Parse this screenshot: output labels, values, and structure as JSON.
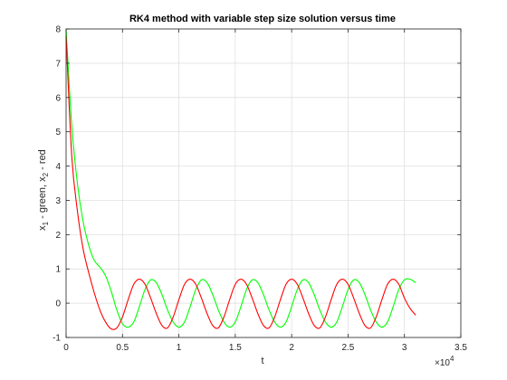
{
  "chart_data": {
    "type": "line",
    "title": "RK4 method with variable step size solution versus time",
    "xlabel": "t",
    "ylabel": {
      "part1": "x",
      "sub1": "1",
      "part2": " - green, x",
      "sub2": "2",
      "part3": " - red"
    },
    "x_exponent": {
      "base": "×10",
      "power": "4"
    },
    "xlim": [
      0,
      3.5
    ],
    "ylim": [
      -1,
      8
    ],
    "x_ticks": [
      0,
      0.5,
      1,
      1.5,
      2,
      2.5,
      3,
      3.5
    ],
    "x_tick_labels": [
      "0",
      "0.5",
      "1",
      "1.5",
      "2",
      "2.5",
      "3",
      "3.5"
    ],
    "y_ticks": [
      -1,
      0,
      1,
      2,
      3,
      4,
      5,
      6,
      7,
      8
    ],
    "y_tick_labels": [
      "-1",
      "0",
      "1",
      "2",
      "3",
      "4",
      "5",
      "6",
      "7",
      "8"
    ],
    "grid": true,
    "x_units_note": "x values in units of 1e4",
    "series": [
      {
        "name": "x1",
        "color": "#00ff00",
        "points": [
          [
            0,
            8
          ],
          [
            0.05,
            5.2
          ],
          [
            0.1,
            3.5
          ],
          [
            0.15,
            2.4
          ],
          [
            0.2,
            1.7
          ],
          [
            0.25,
            1.25
          ],
          [
            0.3,
            1.05
          ],
          [
            0.35,
            0.8
          ],
          [
            0.4,
            0.35
          ],
          [
            0.45,
            -0.2
          ],
          [
            0.5,
            -0.6
          ],
          [
            0.55,
            -0.7
          ],
          [
            0.6,
            -0.55
          ],
          [
            0.65,
            -0.1
          ],
          [
            0.7,
            0.4
          ],
          [
            0.75,
            0.68
          ],
          [
            0.8,
            0.6
          ],
          [
            0.85,
            0.25
          ],
          [
            0.9,
            -0.2
          ],
          [
            0.95,
            -0.55
          ],
          [
            1.0,
            -0.7
          ],
          [
            1.05,
            -0.55
          ],
          [
            1.1,
            -0.1
          ],
          [
            1.15,
            0.4
          ],
          [
            1.2,
            0.68
          ],
          [
            1.25,
            0.6
          ],
          [
            1.3,
            0.25
          ],
          [
            1.35,
            -0.2
          ],
          [
            1.4,
            -0.55
          ],
          [
            1.45,
            -0.7
          ],
          [
            1.5,
            -0.55
          ],
          [
            1.55,
            -0.1
          ],
          [
            1.6,
            0.4
          ],
          [
            1.65,
            0.68
          ],
          [
            1.7,
            0.6
          ],
          [
            1.75,
            0.25
          ],
          [
            1.8,
            -0.2
          ],
          [
            1.85,
            -0.55
          ],
          [
            1.9,
            -0.7
          ],
          [
            1.95,
            -0.55
          ],
          [
            2.0,
            -0.1
          ],
          [
            2.05,
            0.4
          ],
          [
            2.1,
            0.68
          ],
          [
            2.15,
            0.6
          ],
          [
            2.2,
            0.25
          ],
          [
            2.25,
            -0.2
          ],
          [
            2.3,
            -0.55
          ],
          [
            2.35,
            -0.7
          ],
          [
            2.4,
            -0.55
          ],
          [
            2.45,
            -0.1
          ],
          [
            2.5,
            0.4
          ],
          [
            2.55,
            0.68
          ],
          [
            2.6,
            0.6
          ],
          [
            2.65,
            0.25
          ],
          [
            2.7,
            -0.2
          ],
          [
            2.75,
            -0.55
          ],
          [
            2.8,
            -0.7
          ],
          [
            2.85,
            -0.55
          ],
          [
            2.9,
            -0.1
          ],
          [
            2.95,
            0.4
          ],
          [
            3.0,
            0.68
          ],
          [
            3.05,
            0.7
          ],
          [
            3.1,
            0.6
          ]
        ]
      },
      {
        "name": "x2",
        "color": "#ff0000",
        "points": [
          [
            0,
            7.8
          ],
          [
            0.05,
            4.3
          ],
          [
            0.1,
            2.7
          ],
          [
            0.15,
            1.6
          ],
          [
            0.2,
            0.9
          ],
          [
            0.25,
            0.3
          ],
          [
            0.3,
            -0.2
          ],
          [
            0.35,
            -0.55
          ],
          [
            0.4,
            -0.75
          ],
          [
            0.45,
            -0.72
          ],
          [
            0.5,
            -0.4
          ],
          [
            0.55,
            0.1
          ],
          [
            0.6,
            0.55
          ],
          [
            0.65,
            0.7
          ],
          [
            0.7,
            0.55
          ],
          [
            0.75,
            0.15
          ],
          [
            0.8,
            -0.3
          ],
          [
            0.85,
            -0.65
          ],
          [
            0.9,
            -0.72
          ],
          [
            0.95,
            -0.4
          ],
          [
            1.0,
            0.1
          ],
          [
            1.05,
            0.55
          ],
          [
            1.1,
            0.7
          ],
          [
            1.15,
            0.55
          ],
          [
            1.2,
            0.15
          ],
          [
            1.25,
            -0.3
          ],
          [
            1.3,
            -0.65
          ],
          [
            1.35,
            -0.72
          ],
          [
            1.4,
            -0.4
          ],
          [
            1.45,
            0.1
          ],
          [
            1.5,
            0.55
          ],
          [
            1.55,
            0.7
          ],
          [
            1.6,
            0.55
          ],
          [
            1.65,
            0.15
          ],
          [
            1.7,
            -0.3
          ],
          [
            1.75,
            -0.65
          ],
          [
            1.8,
            -0.72
          ],
          [
            1.85,
            -0.4
          ],
          [
            1.9,
            0.1
          ],
          [
            1.95,
            0.55
          ],
          [
            2.0,
            0.7
          ],
          [
            2.05,
            0.55
          ],
          [
            2.1,
            0.15
          ],
          [
            2.15,
            -0.3
          ],
          [
            2.2,
            -0.65
          ],
          [
            2.25,
            -0.72
          ],
          [
            2.3,
            -0.4
          ],
          [
            2.35,
            0.1
          ],
          [
            2.4,
            0.55
          ],
          [
            2.45,
            0.7
          ],
          [
            2.5,
            0.55
          ],
          [
            2.55,
            0.15
          ],
          [
            2.6,
            -0.3
          ],
          [
            2.65,
            -0.65
          ],
          [
            2.7,
            -0.72
          ],
          [
            2.75,
            -0.4
          ],
          [
            2.8,
            0.1
          ],
          [
            2.85,
            0.55
          ],
          [
            2.9,
            0.7
          ],
          [
            2.95,
            0.55
          ],
          [
            3.0,
            0.15
          ],
          [
            3.05,
            -0.15
          ],
          [
            3.1,
            -0.35
          ]
        ]
      }
    ]
  }
}
